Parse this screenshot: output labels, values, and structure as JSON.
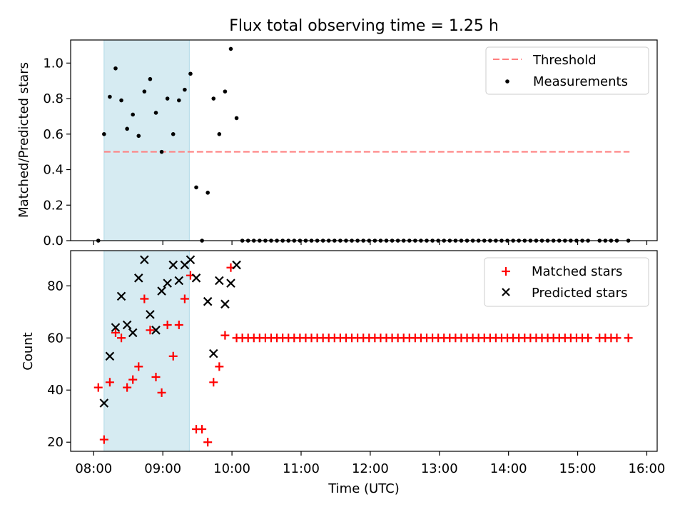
{
  "figure": {
    "title": "Flux total observing time = 1.25 h",
    "xlabel": "Time (UTC)",
    "x_ticks": [
      "08:00",
      "09:00",
      "10:00",
      "11:00",
      "12:00",
      "13:00",
      "14:00",
      "15:00",
      "16:00"
    ]
  },
  "colors": {
    "threshold": "#ff7f7f",
    "measurement": "#000000",
    "matched": "#ff0000",
    "predicted": "#000000",
    "shade": "#add8e6"
  },
  "chart_data": [
    {
      "type": "scatter",
      "panel": "top",
      "title": "Flux total observing time = 1.25 h",
      "xlabel": "",
      "ylabel": "Matched/Predicted stars",
      "xlim": [
        "07:40",
        "16:09"
      ],
      "ylim": [
        0,
        1.13
      ],
      "y_ticks": [
        "0.0",
        "0.2",
        "0.4",
        "0.6",
        "0.8",
        "1.0"
      ],
      "grid": false,
      "legend_position": "top-right",
      "shaded_span": [
        "08:09",
        "09:23"
      ],
      "threshold": {
        "name": "Threshold",
        "y": 0.5,
        "x_range": [
          "08:09",
          "15:45"
        ],
        "style": "dashed"
      },
      "series": [
        {
          "name": "Measurements",
          "marker": "dot",
          "points": [
            [
              "08:04",
              0.0
            ],
            [
              "08:09",
              0.6
            ],
            [
              "08:14",
              0.81
            ],
            [
              "08:19",
              0.97
            ],
            [
              "08:24",
              0.79
            ],
            [
              "08:29",
              0.63
            ],
            [
              "08:34",
              0.71
            ],
            [
              "08:39",
              0.59
            ],
            [
              "08:44",
              0.84
            ],
            [
              "08:49",
              0.91
            ],
            [
              "08:54",
              0.72
            ],
            [
              "08:59",
              0.5
            ],
            [
              "09:04",
              0.8
            ],
            [
              "09:09",
              0.6
            ],
            [
              "09:14",
              0.79
            ],
            [
              "09:19",
              0.85
            ],
            [
              "09:24",
              0.94
            ],
            [
              "09:29",
              0.3
            ],
            [
              "09:34",
              0.0
            ],
            [
              "09:39",
              0.27
            ],
            [
              "09:44",
              0.8
            ],
            [
              "09:49",
              0.6
            ],
            [
              "09:54",
              0.84
            ],
            [
              "09:59",
              1.08
            ],
            [
              "10:04",
              0.69
            ],
            [
              "10:09",
              0.0
            ],
            [
              "10:14",
              0.0
            ],
            [
              "10:19",
              0.0
            ],
            [
              "10:24",
              0.0
            ],
            [
              "10:29",
              0.0
            ],
            [
              "10:34",
              0.0
            ],
            [
              "10:39",
              0.0
            ],
            [
              "10:44",
              0.0
            ],
            [
              "10:49",
              0.0
            ],
            [
              "10:54",
              0.0
            ],
            [
              "10:59",
              0.0
            ],
            [
              "11:04",
              0.0
            ],
            [
              "11:09",
              0.0
            ],
            [
              "11:14",
              0.0
            ],
            [
              "11:19",
              0.0
            ],
            [
              "11:24",
              0.0
            ],
            [
              "11:29",
              0.0
            ],
            [
              "11:34",
              0.0
            ],
            [
              "11:39",
              0.0
            ],
            [
              "11:44",
              0.0
            ],
            [
              "11:49",
              0.0
            ],
            [
              "11:54",
              0.0
            ],
            [
              "11:59",
              0.0
            ],
            [
              "12:04",
              0.0
            ],
            [
              "12:09",
              0.0
            ],
            [
              "12:14",
              0.0
            ],
            [
              "12:19",
              0.0
            ],
            [
              "12:24",
              0.0
            ],
            [
              "12:29",
              0.0
            ],
            [
              "12:34",
              0.0
            ],
            [
              "12:39",
              0.0
            ],
            [
              "12:44",
              0.0
            ],
            [
              "12:49",
              0.0
            ],
            [
              "12:54",
              0.0
            ],
            [
              "12:59",
              0.0
            ],
            [
              "13:04",
              0.0
            ],
            [
              "13:09",
              0.0
            ],
            [
              "13:14",
              0.0
            ],
            [
              "13:19",
              0.0
            ],
            [
              "13:24",
              0.0
            ],
            [
              "13:29",
              0.0
            ],
            [
              "13:34",
              0.0
            ],
            [
              "13:39",
              0.0
            ],
            [
              "13:44",
              0.0
            ],
            [
              "13:49",
              0.0
            ],
            [
              "13:54",
              0.0
            ],
            [
              "13:59",
              0.0
            ],
            [
              "14:04",
              0.0
            ],
            [
              "14:09",
              0.0
            ],
            [
              "14:14",
              0.0
            ],
            [
              "14:19",
              0.0
            ],
            [
              "14:24",
              0.0
            ],
            [
              "14:29",
              0.0
            ],
            [
              "14:34",
              0.0
            ],
            [
              "14:39",
              0.0
            ],
            [
              "14:44",
              0.0
            ],
            [
              "14:49",
              0.0
            ],
            [
              "14:54",
              0.0
            ],
            [
              "14:59",
              0.0
            ],
            [
              "15:04",
              0.0
            ],
            [
              "15:09",
              0.0
            ],
            [
              "15:19",
              0.0
            ],
            [
              "15:24",
              0.0
            ],
            [
              "15:29",
              0.0
            ],
            [
              "15:34",
              0.0
            ],
            [
              "15:44",
              0.0
            ]
          ]
        }
      ]
    },
    {
      "type": "scatter",
      "panel": "bottom",
      "xlabel": "Time (UTC)",
      "ylabel": "Count",
      "xlim": [
        "07:40",
        "16:09"
      ],
      "ylim": [
        16.5,
        93.5
      ],
      "y_ticks": [
        "20",
        "40",
        "60",
        "80"
      ],
      "grid": false,
      "legend_position": "top-right",
      "shaded_span": [
        "08:09",
        "09:23"
      ],
      "series": [
        {
          "name": "Matched stars",
          "marker": "plus",
          "points": [
            [
              "08:04",
              41
            ],
            [
              "08:09",
              21
            ],
            [
              "08:14",
              43
            ],
            [
              "08:19",
              62
            ],
            [
              "08:24",
              60
            ],
            [
              "08:29",
              41
            ],
            [
              "08:34",
              44
            ],
            [
              "08:39",
              49
            ],
            [
              "08:44",
              75
            ],
            [
              "08:49",
              63
            ],
            [
              "08:54",
              45
            ],
            [
              "08:59",
              39
            ],
            [
              "09:04",
              65
            ],
            [
              "09:09",
              53
            ],
            [
              "09:14",
              65
            ],
            [
              "09:19",
              75
            ],
            [
              "09:24",
              84
            ],
            [
              "09:29",
              25
            ],
            [
              "09:34",
              25
            ],
            [
              "09:39",
              20
            ],
            [
              "09:44",
              43
            ],
            [
              "09:49",
              49
            ],
            [
              "09:54",
              61
            ],
            [
              "09:59",
              87
            ],
            [
              "10:04",
              60
            ],
            [
              "10:09",
              60
            ],
            [
              "10:14",
              60
            ],
            [
              "10:19",
              60
            ],
            [
              "10:24",
              60
            ],
            [
              "10:29",
              60
            ],
            [
              "10:34",
              60
            ],
            [
              "10:39",
              60
            ],
            [
              "10:44",
              60
            ],
            [
              "10:49",
              60
            ],
            [
              "10:54",
              60
            ],
            [
              "10:59",
              60
            ],
            [
              "11:04",
              60
            ],
            [
              "11:09",
              60
            ],
            [
              "11:14",
              60
            ],
            [
              "11:19",
              60
            ],
            [
              "11:24",
              60
            ],
            [
              "11:29",
              60
            ],
            [
              "11:34",
              60
            ],
            [
              "11:39",
              60
            ],
            [
              "11:44",
              60
            ],
            [
              "11:49",
              60
            ],
            [
              "11:54",
              60
            ],
            [
              "11:59",
              60
            ],
            [
              "12:04",
              60
            ],
            [
              "12:09",
              60
            ],
            [
              "12:14",
              60
            ],
            [
              "12:19",
              60
            ],
            [
              "12:24",
              60
            ],
            [
              "12:29",
              60
            ],
            [
              "12:34",
              60
            ],
            [
              "12:39",
              60
            ],
            [
              "12:44",
              60
            ],
            [
              "12:49",
              60
            ],
            [
              "12:54",
              60
            ],
            [
              "12:59",
              60
            ],
            [
              "13:04",
              60
            ],
            [
              "13:09",
              60
            ],
            [
              "13:14",
              60
            ],
            [
              "13:19",
              60
            ],
            [
              "13:24",
              60
            ],
            [
              "13:29",
              60
            ],
            [
              "13:34",
              60
            ],
            [
              "13:39",
              60
            ],
            [
              "13:44",
              60
            ],
            [
              "13:49",
              60
            ],
            [
              "13:54",
              60
            ],
            [
              "13:59",
              60
            ],
            [
              "14:04",
              60
            ],
            [
              "14:09",
              60
            ],
            [
              "14:14",
              60
            ],
            [
              "14:19",
              60
            ],
            [
              "14:24",
              60
            ],
            [
              "14:29",
              60
            ],
            [
              "14:34",
              60
            ],
            [
              "14:39",
              60
            ],
            [
              "14:44",
              60
            ],
            [
              "14:49",
              60
            ],
            [
              "14:54",
              60
            ],
            [
              "14:59",
              60
            ],
            [
              "15:04",
              60
            ],
            [
              "15:09",
              60
            ],
            [
              "15:19",
              60
            ],
            [
              "15:24",
              60
            ],
            [
              "15:29",
              60
            ],
            [
              "15:34",
              60
            ],
            [
              "15:44",
              60
            ]
          ]
        },
        {
          "name": "Predicted stars",
          "marker": "x",
          "points": [
            [
              "08:09",
              35
            ],
            [
              "08:14",
              53
            ],
            [
              "08:19",
              64
            ],
            [
              "08:24",
              76
            ],
            [
              "08:29",
              65
            ],
            [
              "08:34",
              62
            ],
            [
              "08:39",
              83
            ],
            [
              "08:44",
              90
            ],
            [
              "08:49",
              69
            ],
            [
              "08:54",
              63
            ],
            [
              "08:59",
              78
            ],
            [
              "09:04",
              81
            ],
            [
              "09:09",
              88
            ],
            [
              "09:14",
              82
            ],
            [
              "09:19",
              88
            ],
            [
              "09:24",
              90
            ],
            [
              "09:29",
              83
            ],
            [
              "09:39",
              74
            ],
            [
              "09:44",
              54
            ],
            [
              "09:49",
              82
            ],
            [
              "09:54",
              73
            ],
            [
              "09:59",
              81
            ],
            [
              "10:04",
              88
            ]
          ]
        }
      ]
    }
  ]
}
